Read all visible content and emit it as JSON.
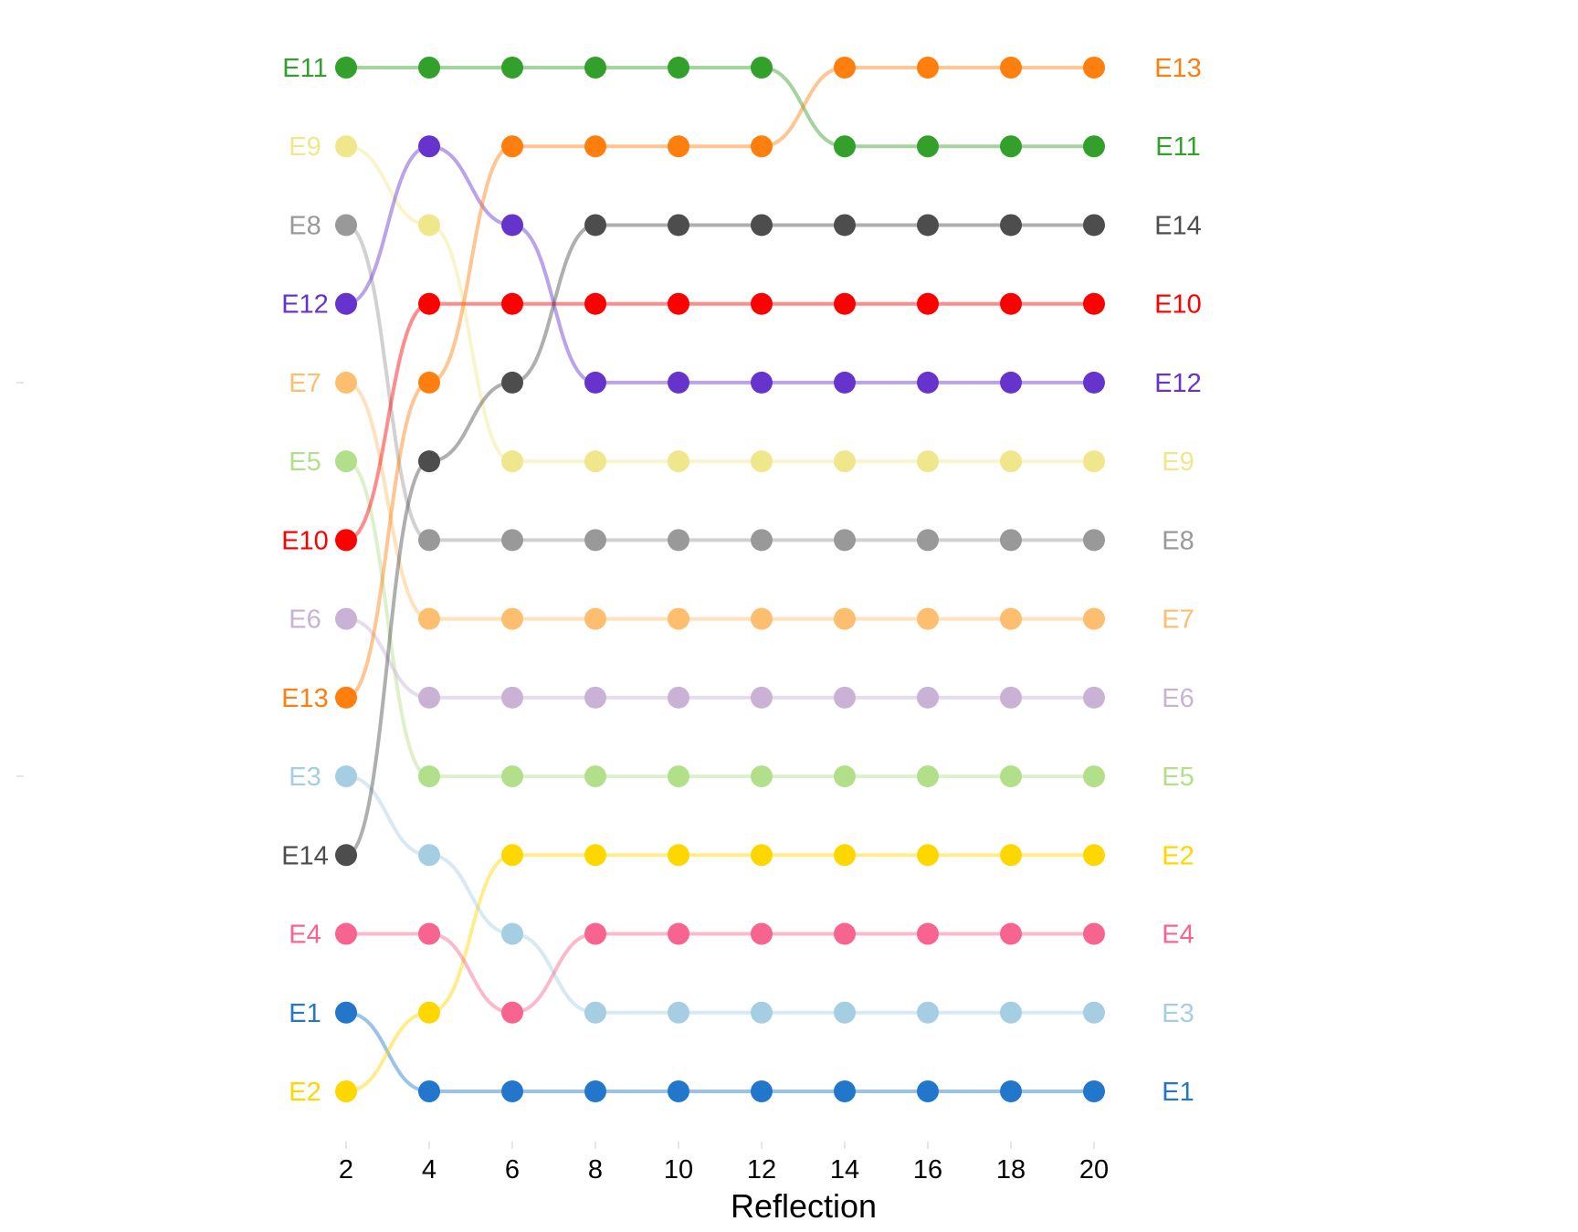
{
  "chart_data": {
    "type": "line",
    "subtype": "bump",
    "title": "",
    "xlabel": "Reflection",
    "ylabel": "",
    "x": [
      2,
      4,
      6,
      8,
      10,
      12,
      14,
      16,
      18,
      20
    ],
    "x_tick_labels": [
      "2",
      "4",
      "6",
      "8",
      "10",
      "12",
      "14",
      "16",
      "18",
      "20"
    ],
    "ranks_top_to_bottom": 14,
    "grid": false,
    "legend": "none (series names shown at both ends)",
    "series": [
      {
        "name": "E1",
        "color": "#2277cc",
        "ranks": [
          13,
          14,
          14,
          14,
          14,
          14,
          14,
          14,
          14,
          14
        ]
      },
      {
        "name": "E2",
        "color": "#ffd700",
        "ranks": [
          14,
          13,
          11,
          11,
          11,
          11,
          11,
          11,
          11,
          11
        ]
      },
      {
        "name": "E3",
        "color": "#a6cee3",
        "ranks": [
          10,
          11,
          12,
          13,
          13,
          13,
          13,
          13,
          13,
          13
        ]
      },
      {
        "name": "E4",
        "color": "#f7648f",
        "ranks": [
          12,
          12,
          13,
          12,
          12,
          12,
          12,
          12,
          12,
          12
        ]
      },
      {
        "name": "E5",
        "color": "#b2df8a",
        "ranks": [
          6,
          10,
          10,
          10,
          10,
          10,
          10,
          10,
          10,
          10
        ]
      },
      {
        "name": "E6",
        "color": "#cab2d6",
        "ranks": [
          8,
          9,
          9,
          9,
          9,
          9,
          9,
          9,
          9,
          9
        ]
      },
      {
        "name": "E7",
        "color": "#fdbf6f",
        "ranks": [
          5,
          8,
          8,
          8,
          8,
          8,
          8,
          8,
          8,
          8
        ]
      },
      {
        "name": "E8",
        "color": "#999999",
        "ranks": [
          3,
          7,
          7,
          7,
          7,
          7,
          7,
          7,
          7,
          7
        ]
      },
      {
        "name": "E9",
        "color": "#f0e68c",
        "ranks": [
          2,
          3,
          6,
          6,
          6,
          6,
          6,
          6,
          6,
          6
        ]
      },
      {
        "name": "E10",
        "color": "#ff0000",
        "ranks": [
          7,
          4,
          4,
          4,
          4,
          4,
          4,
          4,
          4,
          4
        ]
      },
      {
        "name": "E11",
        "color": "#33a02c",
        "ranks": [
          1,
          1,
          1,
          1,
          1,
          1,
          2,
          2,
          2,
          2
        ]
      },
      {
        "name": "E12",
        "color": "#6633cc",
        "ranks": [
          4,
          2,
          3,
          5,
          5,
          5,
          5,
          5,
          5,
          5
        ]
      },
      {
        "name": "E13",
        "color": "#ff7f0e",
        "ranks": [
          9,
          5,
          2,
          2,
          2,
          2,
          1,
          1,
          1,
          1
        ]
      },
      {
        "name": "E14",
        "color": "#4d4d4d",
        "ranks": [
          11,
          6,
          5,
          3,
          3,
          3,
          3,
          3,
          3,
          3
        ]
      }
    ]
  }
}
